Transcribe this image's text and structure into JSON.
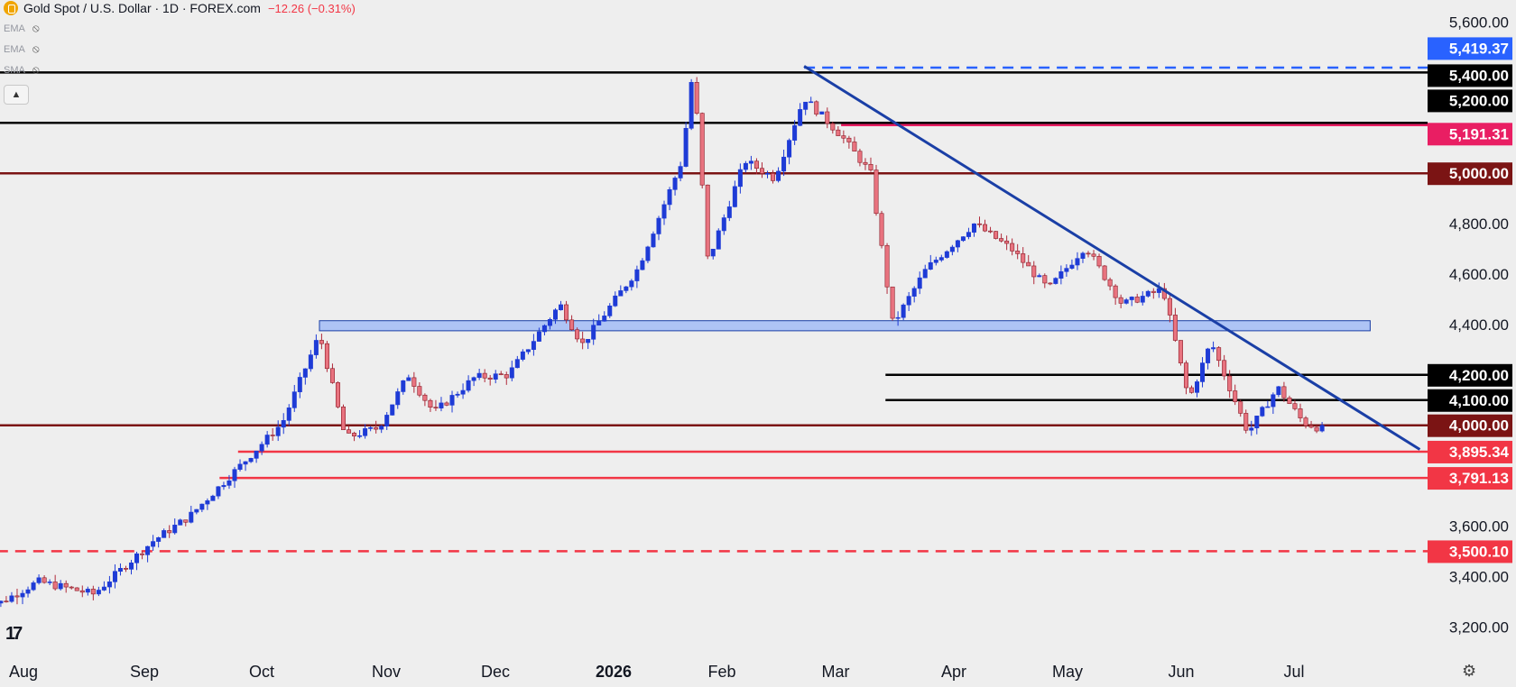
{
  "header": {
    "title": "Gold Spot / U.S. Dollar · 1D · FOREX.com",
    "change": "−12.26 (−0.31%)"
  },
  "indicators": [
    {
      "label": "EMA",
      "icon": "eye-off-icon"
    },
    {
      "label": "EMA",
      "icon": "eye-off-icon"
    },
    {
      "label": "SMA",
      "icon": "eye-off-icon"
    }
  ],
  "collapse_icon": "chevron-up-icon",
  "watermark": "17",
  "settings_icon": "gear-icon",
  "chart_data": {
    "type": "candlestick",
    "x_labels": [
      {
        "label": "Aug",
        "bold": false
      },
      {
        "label": "Sep",
        "bold": false
      },
      {
        "label": "Oct",
        "bold": false
      },
      {
        "label": "Nov",
        "bold": false
      },
      {
        "label": "Dec",
        "bold": false
      },
      {
        "label": "2026",
        "bold": true
      },
      {
        "label": "Feb",
        "bold": false
      },
      {
        "label": "Mar",
        "bold": false
      },
      {
        "label": "Apr",
        "bold": false
      },
      {
        "label": "May",
        "bold": false
      },
      {
        "label": "Jun",
        "bold": false
      },
      {
        "label": "Jul",
        "bold": false
      }
    ],
    "y_ticks": [
      "5,600.00",
      "4,800.00",
      "4,600.00",
      "4,400.00",
      "3,600.00",
      "3,400.00",
      "3,200.00"
    ],
    "y_range": [
      3140,
      5680
    ],
    "price_tags": [
      {
        "label": "5,419.37",
        "value": 5419.37,
        "bg": "#2962ff",
        "fg": "#ffffff"
      },
      {
        "label": "5,400.00",
        "value": 5400,
        "bg": "#000000",
        "fg": "#ffffff"
      },
      {
        "label": "5,200.00",
        "value": 5200,
        "bg": "#000000",
        "fg": "#ffffff"
      },
      {
        "label": "5,191.31",
        "value": 5191.31,
        "bg": "#e91e63",
        "fg": "#ffffff"
      },
      {
        "label": "5,000.00",
        "value": 5000,
        "bg": "#7b1414",
        "fg": "#ffffff"
      },
      {
        "label": "4,200.00",
        "value": 4200,
        "bg": "#000000",
        "fg": "#ffffff"
      },
      {
        "label": "4,100.00",
        "value": 4100,
        "bg": "#000000",
        "fg": "#ffffff"
      },
      {
        "label": "4,000.00",
        "value": 4000,
        "bg": "#7b1414",
        "fg": "#ffffff"
      },
      {
        "label": "3,895.34",
        "value": 3895.34,
        "bg": "#f23645",
        "fg": "#ffffff"
      },
      {
        "label": "3,791.13",
        "value": 3791.13,
        "bg": "#f23645",
        "fg": "#ffffff"
      },
      {
        "label": "3,500.10",
        "value": 3500.1,
        "bg": "#f23645",
        "fg": "#ffffff"
      }
    ],
    "horizontal_lines": [
      {
        "value": 5400,
        "from": "2025-07-20",
        "color": "#000000",
        "style": "solid"
      },
      {
        "value": 5200,
        "from": "2025-07-20",
        "color": "#000000",
        "style": "solid"
      },
      {
        "value": 5191.31,
        "from": "2026-03-10",
        "color": "#e91e63",
        "style": "solid"
      },
      {
        "value": 5000,
        "from": "2025-07-20",
        "color": "#7b1414",
        "style": "solid"
      },
      {
        "value": 4200,
        "from": "2026-03-22",
        "color": "#000000",
        "style": "solid"
      },
      {
        "value": 4100,
        "from": "2026-03-22",
        "color": "#000000",
        "style": "solid"
      },
      {
        "value": 4000,
        "from": "2025-07-20",
        "color": "#7b1414",
        "style": "solid"
      },
      {
        "value": 3895.34,
        "from": "2025-09-28",
        "color": "#f23645",
        "style": "solid"
      },
      {
        "value": 3791.13,
        "from": "2025-09-23",
        "color": "#f23645",
        "style": "solid"
      },
      {
        "value": 3500.1,
        "from": "2025-07-20",
        "color": "#f23645",
        "style": "dashed"
      },
      {
        "value": 5419.37,
        "from": "2026-02-28",
        "color": "#2962ff",
        "style": "dashed"
      }
    ],
    "zone": {
      "low": 4375,
      "high": 4415,
      "from": "2025-10-20",
      "to": "2026-07-31",
      "color": "#aec4f5"
    },
    "trendline": {
      "from": [
        "2026-02-28",
        5425
      ],
      "to": [
        "2026-07-31",
        3940
      ],
      "color": "#1a3fa6"
    },
    "ohlc_anchors": [
      [
        "2025-07-20",
        3350
      ],
      [
        "2025-07-25",
        3290
      ],
      [
        "2025-08-05",
        3380
      ],
      [
        "2025-08-20",
        3330
      ],
      [
        "2025-09-05",
        3540
      ],
      [
        "2025-09-15",
        3640
      ],
      [
        "2025-09-30",
        3860
      ],
      [
        "2025-10-10",
        4010
      ],
      [
        "2025-10-20",
        4360
      ],
      [
        "2025-10-27",
        3950
      ],
      [
        "2025-11-05",
        3990
      ],
      [
        "2025-11-13",
        4200
      ],
      [
        "2025-11-20",
        4050
      ],
      [
        "2025-12-01",
        4190
      ],
      [
        "2025-12-10",
        4200
      ],
      [
        "2025-12-24",
        4480
      ],
      [
        "2025-12-30",
        4320
      ],
      [
        "2026-01-14",
        4620
      ],
      [
        "2026-01-26",
        5050
      ],
      [
        "2026-01-29",
        5420
      ],
      [
        "2026-02-02",
        4650
      ],
      [
        "2026-02-12",
        5050
      ],
      [
        "2026-02-20",
        4980
      ],
      [
        "2026-02-28",
        5300
      ],
      [
        "2026-03-10",
        5150
      ],
      [
        "2026-03-18",
        5000
      ],
      [
        "2026-03-24",
        4400
      ],
      [
        "2026-04-02",
        4620
      ],
      [
        "2026-04-15",
        4800
      ],
      [
        "2026-04-25",
        4700
      ],
      [
        "2026-05-05",
        4540
      ],
      [
        "2026-05-15",
        4710
      ],
      [
        "2026-05-25",
        4480
      ],
      [
        "2026-06-05",
        4540
      ],
      [
        "2026-06-12",
        4100
      ],
      [
        "2026-06-18",
        4330
      ],
      [
        "2026-06-28",
        3970
      ],
      [
        "2026-07-06",
        4150
      ],
      [
        "2026-07-13",
        4010
      ],
      [
        "2026-07-18",
        3985
      ]
    ]
  }
}
